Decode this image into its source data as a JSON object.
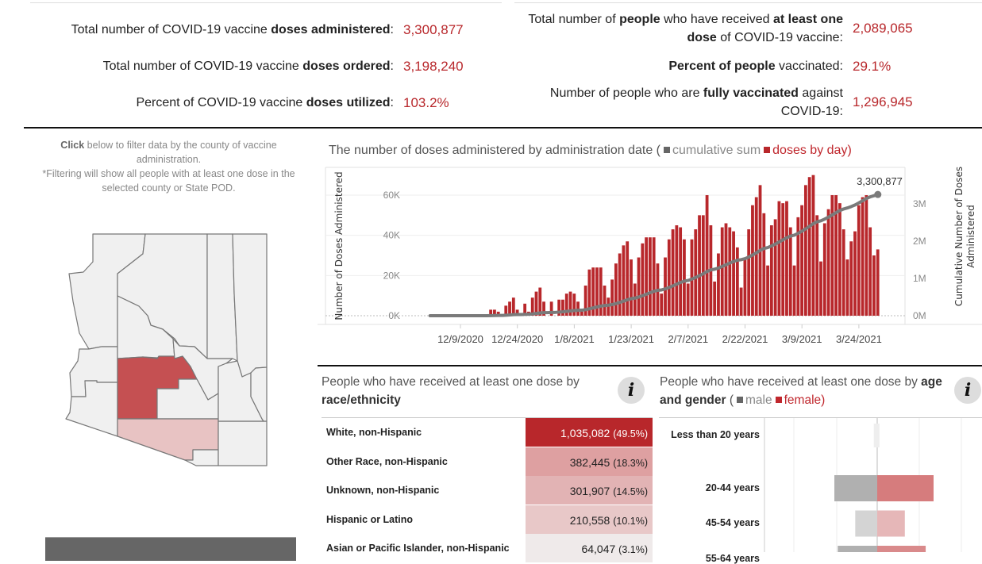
{
  "stats_left": [
    {
      "label": [
        {
          "t": "Total number of COVID-19 vaccine ",
          "b": false
        },
        {
          "t": "doses administered",
          "b": true
        },
        {
          "t": ":",
          "b": false
        }
      ],
      "value": "3,300,877"
    },
    {
      "label": [
        {
          "t": "Total number of COVID-19 vaccine ",
          "b": false
        },
        {
          "t": "doses ordered",
          "b": true
        },
        {
          "t": ":",
          "b": false
        }
      ],
      "value": "3,198,240"
    },
    {
      "label": [
        {
          "t": "Percent of COVID-19 vaccine ",
          "b": false
        },
        {
          "t": "doses utilized",
          "b": true
        },
        {
          "t": ":",
          "b": false
        }
      ],
      "value": "103.2%"
    }
  ],
  "stats_right": [
    {
      "label": [
        {
          "t": "Total number of ",
          "b": false
        },
        {
          "t": "people",
          "b": true
        },
        {
          "t": " who have received ",
          "b": false
        },
        {
          "t": "at least one dose",
          "b": true
        },
        {
          "t": " of COVID-19 vaccine:",
          "b": false
        }
      ],
      "value": "2,089,065"
    },
    {
      "label": [
        {
          "t": "Percent of people",
          "b": true
        },
        {
          "t": " vaccinated:",
          "b": false
        }
      ],
      "value": "29.1%"
    },
    {
      "label": [
        {
          "t": "Number of people who are ",
          "b": false
        },
        {
          "t": "fully vaccinated",
          "b": true
        },
        {
          "t": " against COVID-19:",
          "b": false
        }
      ],
      "value": "1,296,945"
    }
  ],
  "map_note": {
    "click": "Click",
    "line1": " below to filter data by the county of vaccine administration.",
    "line2": "*Filtering will show all people with at least one dose in the selected county or State POD."
  },
  "map": {
    "colors": {
      "default": "#f0f0f0",
      "maricopa": "#c55052",
      "pima": "#e8c3c3",
      "border": "#777777"
    }
  },
  "doses_chart": {
    "title": "The number of doses administered by administration date (",
    "legend_cum": "cumulative sum",
    "legend_day": "doses by day)",
    "colors": {
      "bars": "#b8272b",
      "line": "#7a7a7a"
    },
    "chart_data": {
      "type": "bar",
      "ylabel": "Number of Doses Administered",
      "y2label": "Cumulative Number of Doses Administered",
      "y_ticks": [
        "0K",
        "20K",
        "40K",
        "60K"
      ],
      "y2_ticks": [
        "0M",
        "1M",
        "2M",
        "3M"
      ],
      "x_ticks": [
        "12/9/2020",
        "12/24/2020",
        "1/8/2021",
        "1/23/2021",
        "2/7/2021",
        "2/22/2021",
        "3/9/2021",
        "3/24/2021"
      ],
      "first_bar_date": "12/17/2020",
      "daily_doses_thousands": [
        3,
        3,
        2,
        0,
        5,
        7,
        9,
        3,
        0,
        6,
        2,
        9,
        12,
        14,
        7,
        0,
        7,
        0,
        8,
        8,
        11,
        12,
        11,
        7,
        2,
        15,
        23,
        24,
        24,
        24,
        15,
        9,
        18,
        26,
        31,
        35,
        37,
        28,
        16,
        29,
        36,
        39,
        39,
        39,
        26,
        11,
        29,
        38,
        43,
        45,
        44,
        38,
        16,
        38,
        43,
        50,
        50,
        60,
        45,
        17,
        31,
        44,
        46,
        44,
        42,
        34,
        14,
        28,
        43,
        55,
        59,
        65,
        51,
        25,
        45,
        48,
        57,
        56,
        57,
        44,
        25,
        49,
        55,
        65,
        69,
        70,
        50,
        27,
        46,
        53,
        60,
        60,
        56,
        43,
        28,
        37,
        42,
        55,
        59,
        60,
        44,
        30,
        33
      ],
      "cumulative_label": "3,300,877"
    }
  },
  "race": {
    "title_pre": "People who have received at least one dose by ",
    "title_bold": "race/ethnicity",
    "info": "i",
    "rows": [
      {
        "label": "White, non-Hispanic",
        "value": "1,035,082",
        "pct": "(49.5%)",
        "color": "#b8272b",
        "text": "#ffffff"
      },
      {
        "label": "Other Race, non-Hispanic",
        "value": "382,445",
        "pct": "(18.3%)",
        "color": "#dea0a1",
        "text": "#222222"
      },
      {
        "label": "Unknown, non-Hispanic",
        "value": "301,907",
        "pct": "(14.5%)",
        "color": "#e2b3b4",
        "text": "#222222"
      },
      {
        "label": "Hispanic or Latino",
        "value": "210,558",
        "pct": "(10.1%)",
        "color": "#e8c8c8",
        "text": "#222222"
      },
      {
        "label": "Asian or Pacific Islander, non-Hispanic",
        "value": "64,047",
        "pct": "(3.1%)",
        "color": "#efeaea",
        "text": "#222222"
      }
    ]
  },
  "age": {
    "title_pre": "People who have received at least one dose by ",
    "title_bold": "age and gender",
    "legend_open": " (",
    "legend_male": "male",
    "legend_female": "female)",
    "info": "i",
    "rows_relative_to_max": [
      {
        "label": "Less than 20 years",
        "male": 0.06,
        "female": 0.04,
        "mcolor": "#eeeeee",
        "fcolor": "#eeeeee"
      },
      {
        "label": "20-44 years",
        "male": 0.76,
        "female": 1.0,
        "mcolor": "#b0b0b0",
        "fcolor": "#d67c7d"
      },
      {
        "label": "45-54 years",
        "male": 0.39,
        "female": 0.49,
        "mcolor": "#d4d4d4",
        "fcolor": "#e6b7b8"
      },
      {
        "label": "55-64 years",
        "male": 0.7,
        "female": 0.86,
        "mcolor": "#b0b0b0",
        "fcolor": "#d98a8b"
      }
    ]
  }
}
